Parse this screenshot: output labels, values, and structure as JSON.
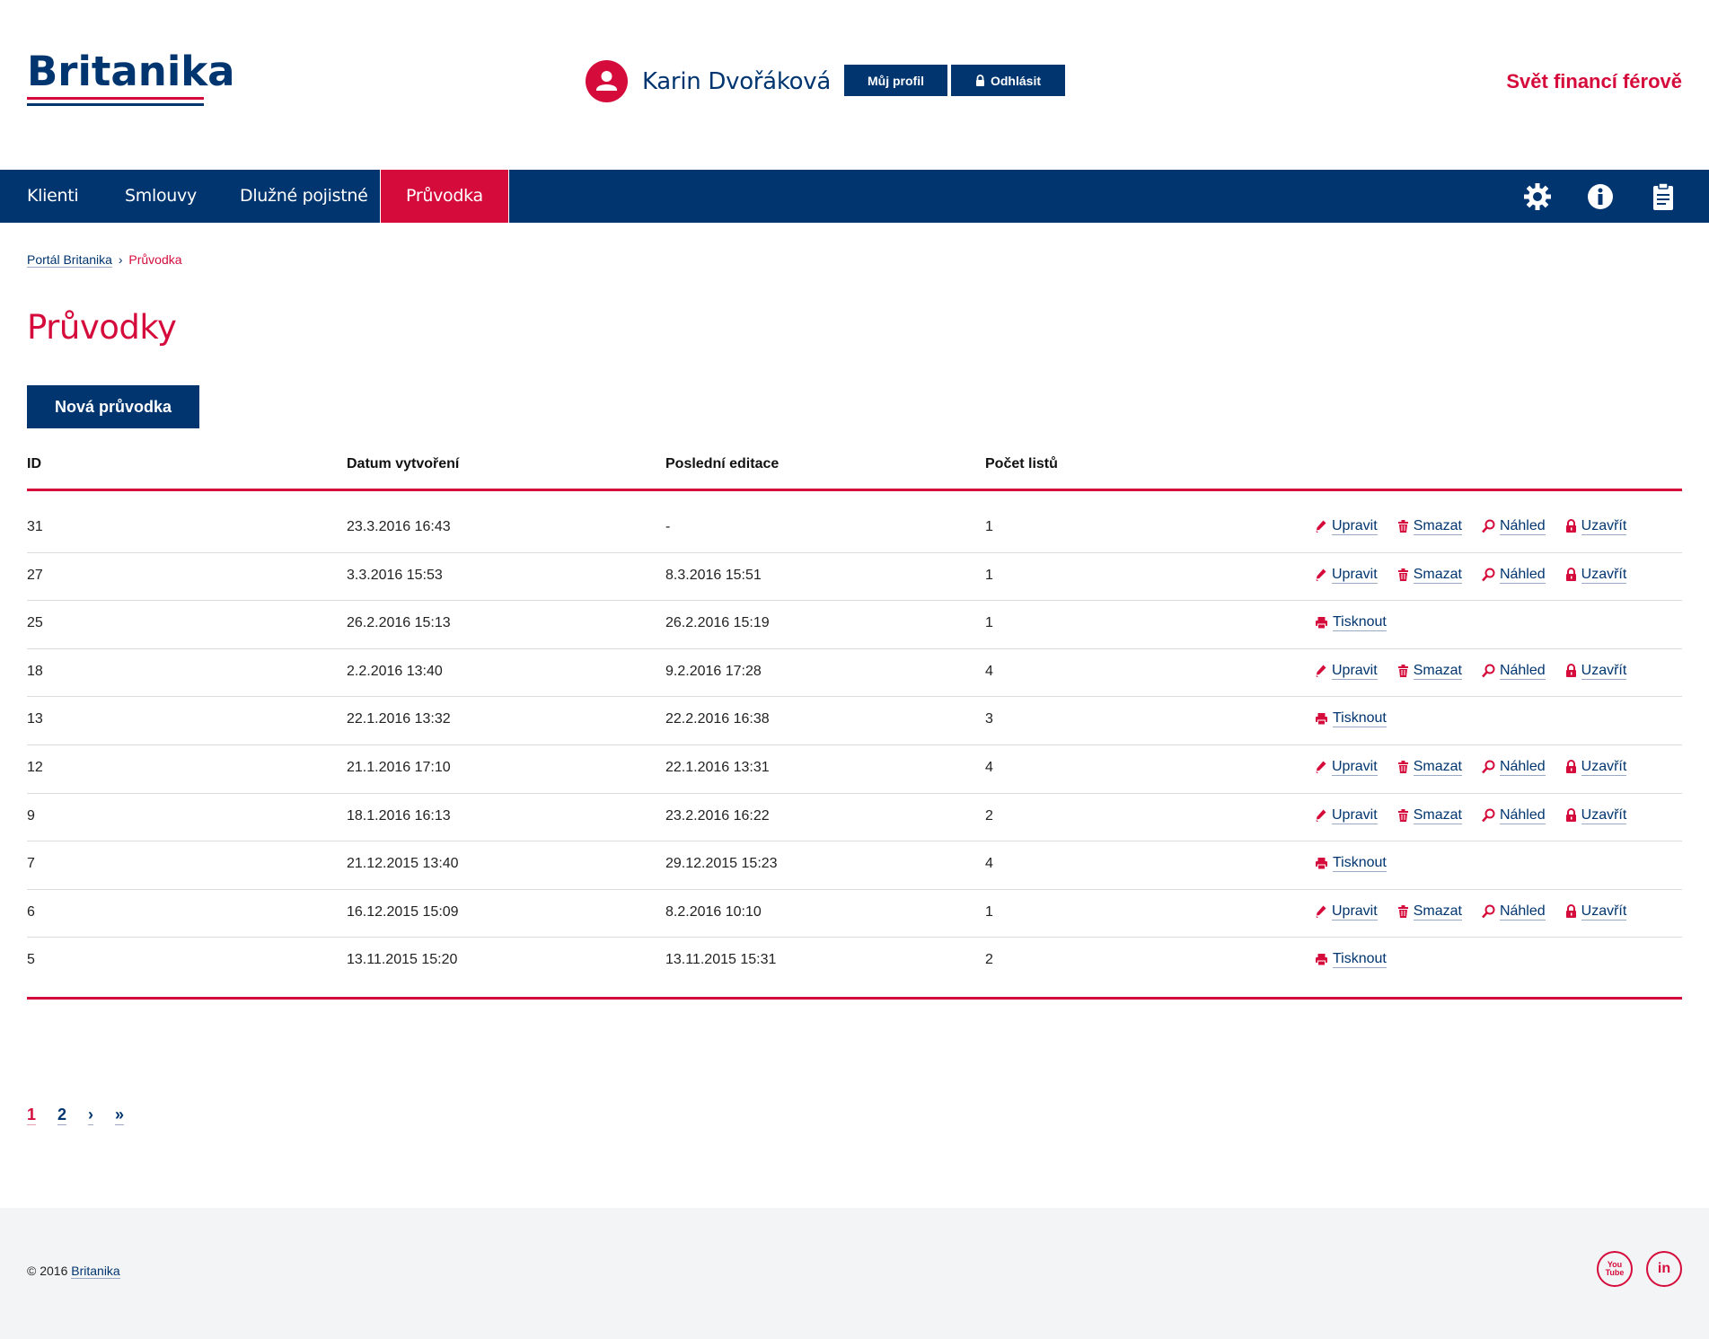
{
  "brand": {
    "logo_text": "Britanika",
    "tagline": "Svět financí férově"
  },
  "colors": {
    "primary": "#00356f",
    "accent": "#d50c3b",
    "footer_bg": "#f3f4f6"
  },
  "user": {
    "name": "Karin Dvořáková",
    "profile_label": "Můj profil",
    "logout_label": "Odhlásit"
  },
  "nav": {
    "items": [
      {
        "label": "Klienti"
      },
      {
        "label": "Smlouvy"
      },
      {
        "label": "Dlužné pojistné"
      },
      {
        "label": "Průvodka"
      }
    ],
    "active_index": 3,
    "icons": [
      "gear-icon",
      "info-icon",
      "clipboard-icon"
    ]
  },
  "breadcrumb": {
    "home": "Portál Britanika",
    "separator": "›",
    "current": "Průvodka"
  },
  "page": {
    "title": "Průvodky",
    "new_button": "Nová průvodka"
  },
  "table": {
    "headers": [
      "ID",
      "Datum vytvoření",
      "Poslední editace",
      "Počet listů"
    ],
    "action_labels": {
      "edit": "Upravit",
      "delete": "Smazat",
      "preview": "Náhled",
      "close": "Uzavřít",
      "print": "Tisknout"
    },
    "rows": [
      {
        "id": "31",
        "created": "23.3.2016 16:43",
        "edited": "-",
        "sheets": "1",
        "closed": false
      },
      {
        "id": "27",
        "created": "3.3.2016 15:53",
        "edited": "8.3.2016 15:51",
        "sheets": "1",
        "closed": false
      },
      {
        "id": "25",
        "created": "26.2.2016 15:13",
        "edited": "26.2.2016 15:19",
        "sheets": "1",
        "closed": true
      },
      {
        "id": "18",
        "created": "2.2.2016 13:40",
        "edited": "9.2.2016 17:28",
        "sheets": "4",
        "closed": false
      },
      {
        "id": "13",
        "created": "22.1.2016 13:32",
        "edited": "22.2.2016 16:38",
        "sheets": "3",
        "closed": true
      },
      {
        "id": "12",
        "created": "21.1.2016 17:10",
        "edited": "22.1.2016 13:31",
        "sheets": "4",
        "closed": false
      },
      {
        "id": "9",
        "created": "18.1.2016 16:13",
        "edited": "23.2.2016 16:22",
        "sheets": "2",
        "closed": false
      },
      {
        "id": "7",
        "created": "21.12.2015 13:40",
        "edited": "29.12.2015 15:23",
        "sheets": "4",
        "closed": true
      },
      {
        "id": "6",
        "created": "16.12.2015 15:09",
        "edited": "8.2.2016 10:10",
        "sheets": "1",
        "closed": false
      },
      {
        "id": "5",
        "created": "13.11.2015 15:20",
        "edited": "13.11.2015 15:31",
        "sheets": "2",
        "closed": true
      }
    ]
  },
  "pagination": {
    "pages": [
      "1",
      "2"
    ],
    "current": "1",
    "next": "›",
    "last": "»"
  },
  "footer": {
    "copyright": "© 2016",
    "company_link": "Britanika",
    "social": {
      "youtube_text": "You Tube",
      "linkedin_text": "in"
    }
  }
}
